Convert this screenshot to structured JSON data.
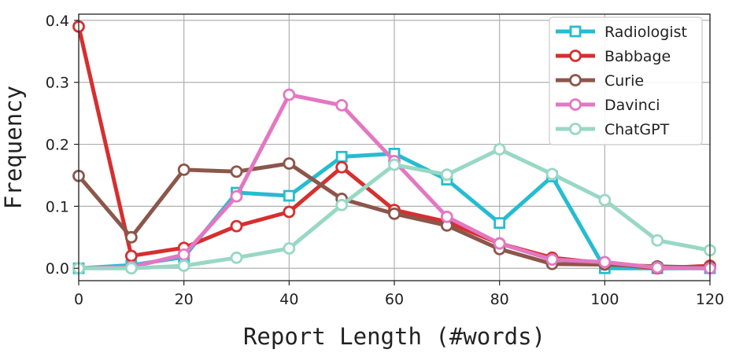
{
  "chart_data": {
    "type": "line",
    "title": "",
    "xlabel": "Report Length (#words)",
    "ylabel": "Frequency",
    "xlim": [
      0,
      120
    ],
    "ylim": [
      -0.02,
      0.41
    ],
    "xticks": [
      0,
      20,
      40,
      60,
      80,
      100,
      120
    ],
    "xtick_labels": [
      "0",
      "20",
      "40",
      "60",
      "80",
      "100",
      "120"
    ],
    "yticks": [
      0.0,
      0.1,
      0.2,
      0.3,
      0.4
    ],
    "ytick_labels": [
      "0.0",
      "0.1",
      "0.2",
      "0.3",
      "0.4"
    ],
    "grid": true,
    "legend_position": "top-right",
    "x": [
      0,
      10,
      20,
      30,
      40,
      50,
      60,
      70,
      80,
      90,
      100,
      110,
      120
    ],
    "series": [
      {
        "name": "Radiologist",
        "color": "#26bcd0",
        "marker": "square",
        "values": [
          0.0,
          0.005,
          0.018,
          0.122,
          0.117,
          0.18,
          0.185,
          0.143,
          0.073,
          0.148,
          0.0,
          0.0,
          0.0
        ]
      },
      {
        "name": "Babbage",
        "color": "#d62f2f",
        "marker": "circle",
        "values": [
          0.39,
          0.02,
          0.033,
          0.068,
          0.091,
          0.163,
          0.094,
          0.075,
          0.04,
          0.017,
          0.008,
          0.0,
          0.004
        ]
      },
      {
        "name": "Curie",
        "color": "#8c564b",
        "marker": "circle",
        "values": [
          0.149,
          0.05,
          0.159,
          0.156,
          0.169,
          0.112,
          0.088,
          0.069,
          0.031,
          0.007,
          0.006,
          0.003,
          0.001
        ]
      },
      {
        "name": "Davinci",
        "color": "#e377c2",
        "marker": "circle",
        "values": [
          0.0,
          0.002,
          0.022,
          0.116,
          0.28,
          0.263,
          0.173,
          0.083,
          0.04,
          0.014,
          0.01,
          0.001,
          0.0
        ]
      },
      {
        "name": "ChatGPT",
        "color": "#98d8c4",
        "marker": "circle",
        "values": [
          0.0,
          0.0,
          0.004,
          0.017,
          0.032,
          0.102,
          0.167,
          0.151,
          0.192,
          0.152,
          0.11,
          0.045,
          0.029
        ]
      }
    ]
  }
}
